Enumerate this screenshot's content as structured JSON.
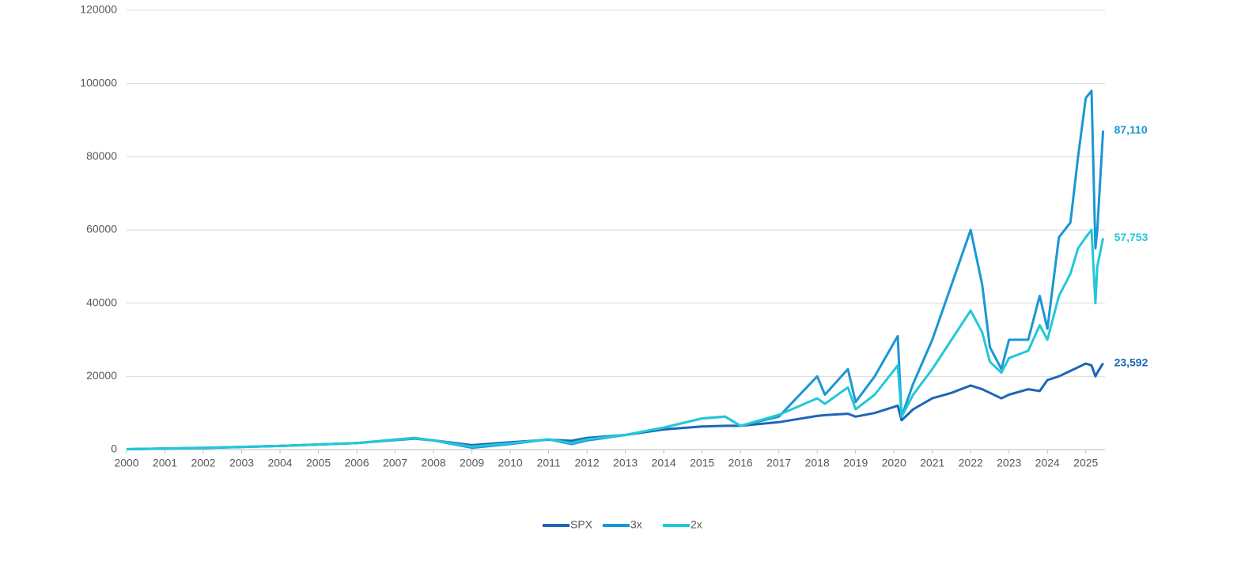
{
  "chart_data": {
    "type": "line",
    "x": [
      2000,
      2002,
      2004,
      2006,
      2007.5,
      2008,
      2009,
      2010,
      2011,
      2011.6,
      2012,
      2013,
      2014,
      2015,
      2015.6,
      2016,
      2017,
      2018,
      2018.2,
      2018.8,
      2019,
      2019.5,
      2020.1,
      2020.2,
      2020.5,
      2021,
      2021.5,
      2022,
      2022.3,
      2022.5,
      2022.8,
      2023,
      2023.5,
      2023.8,
      2024,
      2024.3,
      2024.6,
      2024.8,
      2025,
      2025.15,
      2025.25,
      2025.3,
      2025.45
    ],
    "series": [
      {
        "name": "SPX",
        "color": "#1e66b8",
        "values": [
          100,
          500,
          1000,
          1800,
          3000,
          2500,
          1200,
          2000,
          2700,
          2400,
          3200,
          4000,
          5500,
          6300,
          6500,
          6500,
          7500,
          9200,
          9400,
          9800,
          9000,
          10000,
          12000,
          8000,
          11000,
          14000,
          15500,
          17500,
          16500,
          15500,
          14000,
          15000,
          16500,
          16000,
          19000,
          20000,
          21500,
          22500,
          23500,
          23000,
          20000,
          21000,
          23592
        ],
        "value_labels": [
          null,
          null,
          null,
          null,
          null,
          null,
          null,
          null,
          null,
          null,
          null,
          null,
          null,
          null,
          null,
          null,
          null,
          null,
          null,
          null,
          null,
          null,
          null,
          null,
          null,
          null,
          null,
          null,
          null,
          null,
          null,
          null,
          null,
          null,
          null,
          null,
          null,
          null,
          null,
          null,
          null,
          null,
          "23,592"
        ]
      },
      {
        "name": "3x",
        "color": "#1a97d4",
        "values": [
          100,
          400,
          1000,
          1800,
          3200,
          2500,
          500,
          1500,
          2800,
          1500,
          2500,
          4000,
          6000,
          8500,
          9000,
          6500,
          9000,
          20000,
          15000,
          22000,
          13000,
          20000,
          31000,
          9000,
          18000,
          30000,
          45000,
          60000,
          45000,
          28000,
          22000,
          30000,
          30000,
          42000,
          33000,
          58000,
          62000,
          80000,
          96000,
          98000,
          55000,
          60000,
          87110
        ],
        "value_labels": [
          null,
          null,
          null,
          null,
          null,
          null,
          null,
          null,
          null,
          null,
          null,
          null,
          null,
          null,
          null,
          null,
          null,
          null,
          null,
          null,
          null,
          null,
          null,
          null,
          null,
          null,
          null,
          null,
          null,
          null,
          null,
          null,
          null,
          null,
          null,
          null,
          null,
          null,
          null,
          null,
          null,
          null,
          "87,110"
        ]
      },
      {
        "name": "2x",
        "color": "#22c8d8",
        "values": [
          100,
          450,
          1000,
          1800,
          3100,
          2500,
          800,
          1700,
          2800,
          1800,
          2800,
          4000,
          6000,
          8500,
          9000,
          6500,
          9500,
          14000,
          12500,
          17000,
          11000,
          15000,
          23000,
          9000,
          15000,
          22000,
          30000,
          38000,
          32000,
          24000,
          21000,
          25000,
          27000,
          34000,
          30000,
          42000,
          48000,
          55000,
          58000,
          60000,
          40000,
          50000,
          57753
        ],
        "value_labels": [
          null,
          null,
          null,
          null,
          null,
          null,
          null,
          null,
          null,
          null,
          null,
          null,
          null,
          null,
          null,
          null,
          null,
          null,
          null,
          null,
          null,
          null,
          null,
          null,
          null,
          null,
          null,
          null,
          null,
          null,
          null,
          null,
          null,
          null,
          null,
          null,
          null,
          null,
          null,
          null,
          null,
          null,
          "57,753"
        ]
      }
    ],
    "xlim": [
      2000,
      2025.5
    ],
    "xticks": [
      2000,
      2001,
      2002,
      2003,
      2004,
      2005,
      2006,
      2007,
      2008,
      2009,
      2010,
      2011,
      2012,
      2013,
      2014,
      2015,
      2016,
      2017,
      2018,
      2019,
      2020,
      2021,
      2022,
      2023,
      2024,
      2025
    ],
    "ylim": [
      0,
      120000
    ],
    "yticks": [
      0,
      20000,
      40000,
      60000,
      80000,
      100000,
      120000
    ],
    "grid": true,
    "legend": "bottom"
  }
}
